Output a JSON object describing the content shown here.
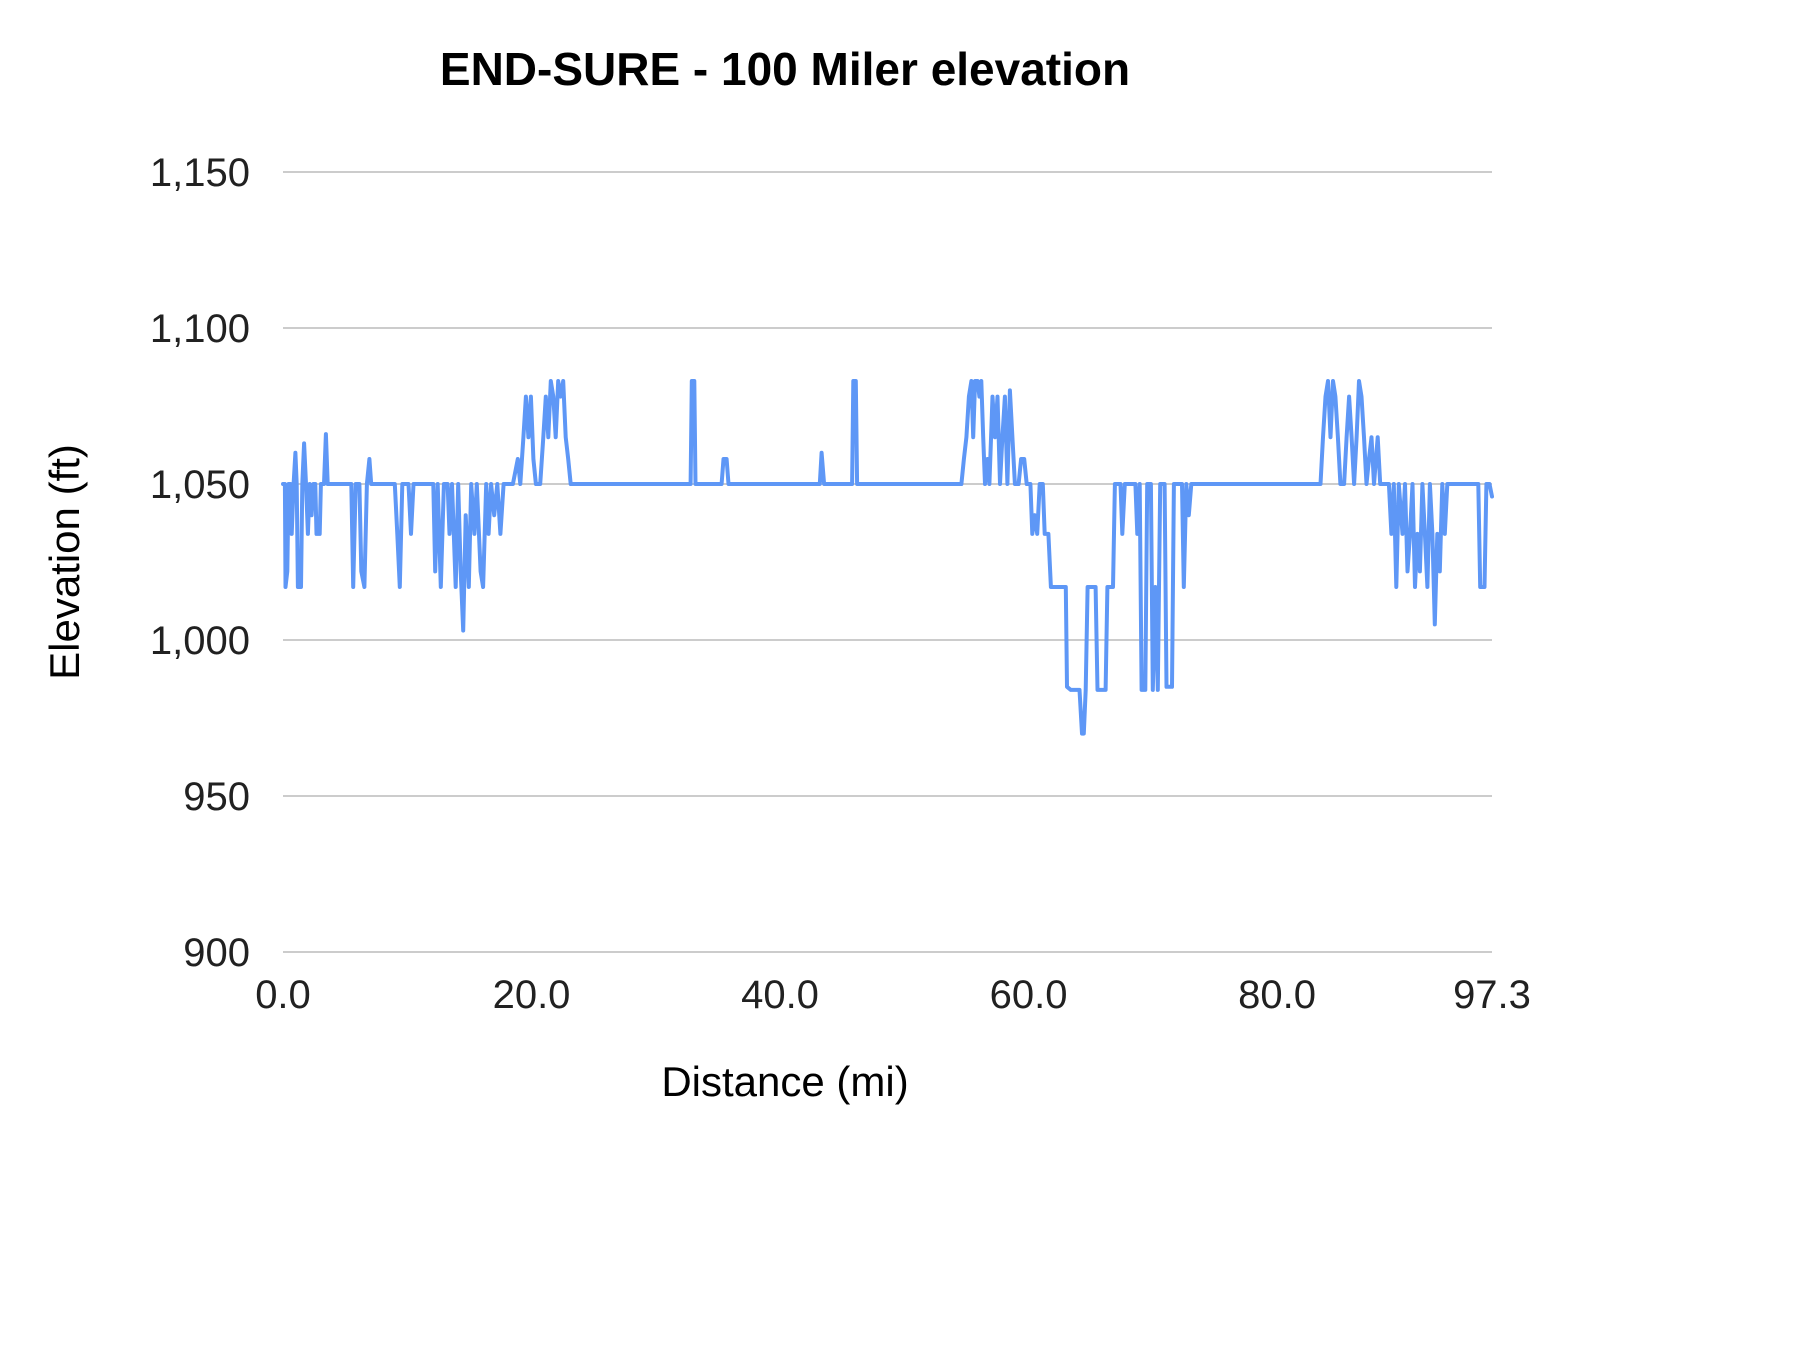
{
  "page": {
    "background_color": "#ffffff"
  },
  "chart_data": {
    "type": "line",
    "title": "END-SURE - 100 Miler elevation",
    "xlabel": "Distance (mi)",
    "ylabel": "Elevation (ft)",
    "xlim": [
      0,
      97.3
    ],
    "ylim": [
      900,
      1150
    ],
    "grid": "horizontal-only",
    "legend": "none",
    "line_color": "#5e97f6",
    "grid_color": "#cccccc",
    "x_ticks": [
      {
        "value": 0,
        "label": "0.0"
      },
      {
        "value": 20,
        "label": "20.0"
      },
      {
        "value": 40,
        "label": "40.0"
      },
      {
        "value": 60,
        "label": "60.0"
      },
      {
        "value": 80,
        "label": "80.0"
      },
      {
        "value": 97.3,
        "label": "97.3"
      }
    ],
    "y_ticks": [
      {
        "value": 900,
        "label": "900"
      },
      {
        "value": 950,
        "label": "950"
      },
      {
        "value": 1000,
        "label": "1,000"
      },
      {
        "value": 1050,
        "label": "1,050"
      },
      {
        "value": 1100,
        "label": "1,100"
      },
      {
        "value": 1150,
        "label": "1,150"
      }
    ],
    "series": [
      {
        "name": "elevation",
        "points": [
          [
            0.0,
            1050
          ],
          [
            0.15,
            1050
          ],
          [
            0.2,
            1017
          ],
          [
            0.35,
            1022
          ],
          [
            0.45,
            1050
          ],
          [
            0.6,
            1050
          ],
          [
            0.7,
            1034
          ],
          [
            0.85,
            1050
          ],
          [
            1.0,
            1060
          ],
          [
            1.1,
            1050
          ],
          [
            1.2,
            1017
          ],
          [
            1.45,
            1017
          ],
          [
            1.55,
            1050
          ],
          [
            1.7,
            1063
          ],
          [
            1.85,
            1050
          ],
          [
            2.0,
            1034
          ],
          [
            2.15,
            1050
          ],
          [
            2.3,
            1040
          ],
          [
            2.45,
            1050
          ],
          [
            2.6,
            1050
          ],
          [
            2.7,
            1034
          ],
          [
            2.95,
            1034
          ],
          [
            3.05,
            1050
          ],
          [
            3.3,
            1050
          ],
          [
            3.45,
            1066
          ],
          [
            3.6,
            1050
          ],
          [
            4.5,
            1050
          ],
          [
            5.5,
            1050
          ],
          [
            5.65,
            1017
          ],
          [
            5.85,
            1050
          ],
          [
            6.15,
            1050
          ],
          [
            6.3,
            1022
          ],
          [
            6.55,
            1017
          ],
          [
            6.75,
            1050
          ],
          [
            6.95,
            1058
          ],
          [
            7.1,
            1050
          ],
          [
            8.0,
            1050
          ],
          [
            9.0,
            1050
          ],
          [
            9.2,
            1034
          ],
          [
            9.4,
            1017
          ],
          [
            9.6,
            1050
          ],
          [
            10.1,
            1050
          ],
          [
            10.3,
            1034
          ],
          [
            10.5,
            1050
          ],
          [
            11.5,
            1050
          ],
          [
            12.1,
            1050
          ],
          [
            12.25,
            1022
          ],
          [
            12.45,
            1050
          ],
          [
            12.7,
            1017
          ],
          [
            12.95,
            1050
          ],
          [
            13.25,
            1050
          ],
          [
            13.4,
            1034
          ],
          [
            13.6,
            1050
          ],
          [
            13.9,
            1017
          ],
          [
            14.1,
            1050
          ],
          [
            14.3,
            1022
          ],
          [
            14.5,
            1003
          ],
          [
            14.7,
            1040
          ],
          [
            14.95,
            1017
          ],
          [
            15.15,
            1050
          ],
          [
            15.4,
            1034
          ],
          [
            15.6,
            1050
          ],
          [
            15.9,
            1022
          ],
          [
            16.1,
            1017
          ],
          [
            16.35,
            1050
          ],
          [
            16.55,
            1034
          ],
          [
            16.75,
            1050
          ],
          [
            17.0,
            1040
          ],
          [
            17.25,
            1050
          ],
          [
            17.5,
            1034
          ],
          [
            17.75,
            1050
          ],
          [
            18.5,
            1050
          ],
          [
            18.9,
            1058
          ],
          [
            19.1,
            1050
          ],
          [
            19.35,
            1065
          ],
          [
            19.55,
            1078
          ],
          [
            19.75,
            1065
          ],
          [
            19.95,
            1078
          ],
          [
            20.15,
            1058
          ],
          [
            20.35,
            1050
          ],
          [
            20.7,
            1050
          ],
          [
            20.95,
            1065
          ],
          [
            21.15,
            1078
          ],
          [
            21.35,
            1065
          ],
          [
            21.55,
            1083
          ],
          [
            21.75,
            1078
          ],
          [
            21.95,
            1065
          ],
          [
            22.15,
            1083
          ],
          [
            22.35,
            1078
          ],
          [
            22.55,
            1083
          ],
          [
            22.75,
            1065
          ],
          [
            22.95,
            1058
          ],
          [
            23.15,
            1050
          ],
          [
            24.0,
            1050
          ],
          [
            26.0,
            1050
          ],
          [
            28.0,
            1050
          ],
          [
            30.0,
            1050
          ],
          [
            32.0,
            1050
          ],
          [
            32.8,
            1050
          ],
          [
            32.9,
            1083
          ],
          [
            33.1,
            1083
          ],
          [
            33.2,
            1050
          ],
          [
            34.0,
            1050
          ],
          [
            35.3,
            1050
          ],
          [
            35.45,
            1058
          ],
          [
            35.7,
            1058
          ],
          [
            35.85,
            1050
          ],
          [
            37.0,
            1050
          ],
          [
            39.0,
            1050
          ],
          [
            41.0,
            1050
          ],
          [
            43.2,
            1050
          ],
          [
            43.35,
            1060
          ],
          [
            43.55,
            1050
          ],
          [
            45.0,
            1050
          ],
          [
            45.8,
            1050
          ],
          [
            45.9,
            1083
          ],
          [
            46.1,
            1083
          ],
          [
            46.2,
            1050
          ],
          [
            47.5,
            1050
          ],
          [
            49.0,
            1050
          ],
          [
            51.0,
            1050
          ],
          [
            53.0,
            1050
          ],
          [
            54.6,
            1050
          ],
          [
            54.8,
            1058
          ],
          [
            55.0,
            1065
          ],
          [
            55.2,
            1078
          ],
          [
            55.4,
            1083
          ],
          [
            55.55,
            1065
          ],
          [
            55.7,
            1083
          ],
          [
            55.9,
            1083
          ],
          [
            56.05,
            1078
          ],
          [
            56.2,
            1083
          ],
          [
            56.35,
            1065
          ],
          [
            56.5,
            1050
          ],
          [
            56.7,
            1058
          ],
          [
            56.85,
            1050
          ],
          [
            57.1,
            1078
          ],
          [
            57.3,
            1065
          ],
          [
            57.5,
            1078
          ],
          [
            57.7,
            1050
          ],
          [
            57.9,
            1065
          ],
          [
            58.1,
            1078
          ],
          [
            58.3,
            1050
          ],
          [
            58.5,
            1080
          ],
          [
            58.7,
            1065
          ],
          [
            58.9,
            1050
          ],
          [
            59.2,
            1050
          ],
          [
            59.4,
            1058
          ],
          [
            59.65,
            1058
          ],
          [
            59.85,
            1050
          ],
          [
            60.15,
            1050
          ],
          [
            60.3,
            1034
          ],
          [
            60.5,
            1040
          ],
          [
            60.7,
            1034
          ],
          [
            60.9,
            1050
          ],
          [
            61.15,
            1050
          ],
          [
            61.3,
            1034
          ],
          [
            61.6,
            1034
          ],
          [
            61.8,
            1017
          ],
          [
            62.5,
            1017
          ],
          [
            63.0,
            1017
          ],
          [
            63.1,
            985
          ],
          [
            63.4,
            984
          ],
          [
            64.1,
            984
          ],
          [
            64.3,
            970
          ],
          [
            64.45,
            970
          ],
          [
            64.6,
            984
          ],
          [
            64.75,
            1017
          ],
          [
            65.4,
            1017
          ],
          [
            65.55,
            984
          ],
          [
            66.2,
            984
          ],
          [
            66.35,
            1017
          ],
          [
            66.8,
            1017
          ],
          [
            66.95,
            1050
          ],
          [
            67.4,
            1050
          ],
          [
            67.55,
            1034
          ],
          [
            67.75,
            1050
          ],
          [
            68.6,
            1050
          ],
          [
            68.75,
            1034
          ],
          [
            68.95,
            1050
          ],
          [
            69.1,
            984
          ],
          [
            69.4,
            984
          ],
          [
            69.55,
            1050
          ],
          [
            69.85,
            1050
          ],
          [
            70.0,
            984
          ],
          [
            70.2,
            1017
          ],
          [
            70.4,
            984
          ],
          [
            70.6,
            1050
          ],
          [
            70.95,
            1050
          ],
          [
            71.1,
            985
          ],
          [
            71.55,
            985
          ],
          [
            71.7,
            1050
          ],
          [
            72.35,
            1050
          ],
          [
            72.5,
            1017
          ],
          [
            72.7,
            1050
          ],
          [
            72.9,
            1040
          ],
          [
            73.1,
            1050
          ],
          [
            74.0,
            1050
          ],
          [
            76.0,
            1050
          ],
          [
            78.0,
            1050
          ],
          [
            80.0,
            1050
          ],
          [
            82.0,
            1050
          ],
          [
            83.5,
            1050
          ],
          [
            83.7,
            1065
          ],
          [
            83.9,
            1078
          ],
          [
            84.1,
            1083
          ],
          [
            84.3,
            1065
          ],
          [
            84.5,
            1083
          ],
          [
            84.7,
            1078
          ],
          [
            84.9,
            1065
          ],
          [
            85.1,
            1050
          ],
          [
            85.4,
            1050
          ],
          [
            85.6,
            1065
          ],
          [
            85.8,
            1078
          ],
          [
            86.0,
            1065
          ],
          [
            86.2,
            1050
          ],
          [
            86.4,
            1065
          ],
          [
            86.6,
            1083
          ],
          [
            86.8,
            1078
          ],
          [
            87.0,
            1065
          ],
          [
            87.2,
            1050
          ],
          [
            87.4,
            1058
          ],
          [
            87.6,
            1065
          ],
          [
            87.8,
            1050
          ],
          [
            88.1,
            1065
          ],
          [
            88.3,
            1050
          ],
          [
            89.0,
            1050
          ],
          [
            89.2,
            1034
          ],
          [
            89.4,
            1050
          ],
          [
            89.6,
            1017
          ],
          [
            89.8,
            1050
          ],
          [
            90.1,
            1034
          ],
          [
            90.3,
            1050
          ],
          [
            90.5,
            1022
          ],
          [
            90.7,
            1034
          ],
          [
            90.9,
            1050
          ],
          [
            91.1,
            1017
          ],
          [
            91.3,
            1034
          ],
          [
            91.5,
            1022
          ],
          [
            91.7,
            1050
          ],
          [
            91.9,
            1034
          ],
          [
            92.1,
            1017
          ],
          [
            92.3,
            1050
          ],
          [
            92.5,
            1034
          ],
          [
            92.7,
            1005
          ],
          [
            92.9,
            1034
          ],
          [
            93.1,
            1022
          ],
          [
            93.3,
            1050
          ],
          [
            93.5,
            1034
          ],
          [
            93.7,
            1050
          ],
          [
            94.5,
            1050
          ],
          [
            95.5,
            1050
          ],
          [
            96.2,
            1050
          ],
          [
            96.35,
            1017
          ],
          [
            96.7,
            1017
          ],
          [
            96.85,
            1050
          ],
          [
            97.1,
            1050
          ],
          [
            97.3,
            1046
          ]
        ]
      }
    ]
  }
}
